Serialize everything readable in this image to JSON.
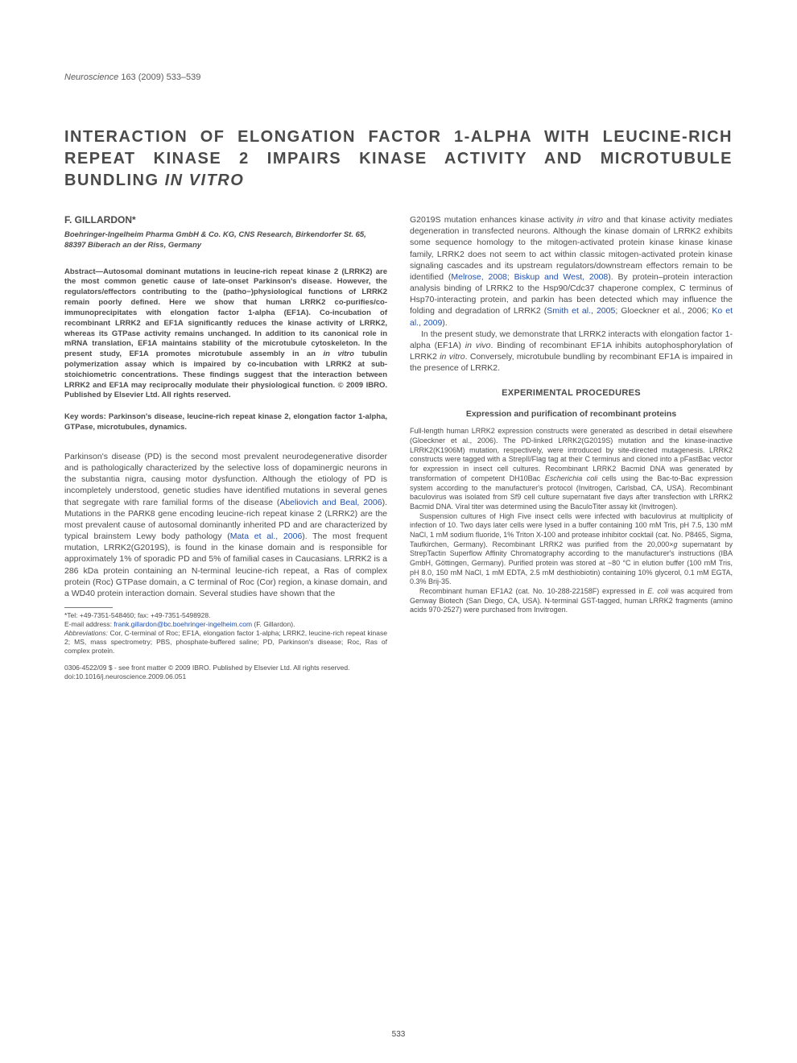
{
  "journal": {
    "name": "Neuroscience",
    "rest": " 163 (2009) 533–539"
  },
  "title": {
    "main": "INTERACTION OF ELONGATION FACTOR 1-ALPHA WITH LEUCINE-RICH REPEAT KINASE 2 IMPAIRS KINASE ACTIVITY AND MICROTUBULE BUNDLING ",
    "italic": "IN VITRO"
  },
  "author": "F. GILLARDON*",
  "affiliation": "Boehringer-Ingelheim Pharma GmbH & Co. KG, CNS Research, Birkendorfer St. 65, 88397 Biberach an der Riss, Germany",
  "abstract": {
    "lead": "Abstract—",
    "body1": "Autosomal dominant mutations in leucine-rich repeat kinase 2 (LRRK2) are the most common genetic cause of late-onset Parkinson's disease. However, the regulators/effectors contributing to the (patho−)physiological functions of LRRK2 remain poorly defined. Here we show that human LRRK2 co-purifies/co-immunoprecipitates with elongation factor 1-alpha (EF1A). Co-incubation of recombinant LRRK2 and EF1A significantly reduces the kinase activity of LRRK2, whereas its GTPase activity remains unchanged. In addition to its canonical role in mRNA translation, EF1A maintains stability of the microtubule cytoskeleton. In the present study, EF1A promotes microtubule assembly in an ",
    "ital1": "in vitro",
    "body2": " tubulin polymerization assay which is impaired by co-incubation with LRRK2 at sub-stoichiometric concentrations. These findings suggest that the interaction between LRRK2 and EF1A may reciprocally modulate their physiological function. © 2009 IBRO. Published by Elsevier Ltd. All rights reserved."
  },
  "keywords": "Key words: Parkinson's disease, leucine-rich repeat kinase 2, elongation factor 1-alpha, GTPase, microtubules, dynamics.",
  "intro": {
    "p1a": "Parkinson's disease (PD) is the second most prevalent neurodegenerative disorder and is pathologically characterized by the selective loss of dopaminergic neurons in the substantia nigra, causing motor dysfunction. Although the etiology of PD is incompletely understood, genetic studies have identified mutations in several genes that segregate with rare familial forms of the disease (",
    "link1": "Abeliovich and Beal, 2006",
    "p1b": "). Mutations in the PARK8 gene encoding leucine-rich repeat kinase 2 (LRRK2) are the most prevalent cause of autosomal dominantly inherited PD and are characterized by typical brainstem Lewy body pathology (",
    "link2": "Mata et al., 2006",
    "p1c": "). The most frequent mutation, LRRK2(G2019S), is found in the kinase domain and is responsible for approximately 1% of sporadic PD and 5% of familial cases in Caucasians. LRRK2 is a 286 kDa protein containing an N-terminal leucine-rich repeat, a Ras of complex protein (Roc) GTPase domain, a C terminal of Roc (Cor) region, a kinase domain, and a WD40 protein interaction domain. Several studies have shown that the"
  },
  "col2": {
    "p1a": "G2019S mutation enhances kinase activity ",
    "ital1": "in vitro",
    "p1b": " and that kinase activity mediates degeneration in transfected neurons. Although the kinase domain of LRRK2 exhibits some sequence homology to the mitogen-activated protein kinase kinase kinase family, LRRK2 does not seem to act within classic mitogen-activated protein kinase signaling cascades and its upstream regulators/downstream effectors remain to be identified (",
    "link1": "Melrose, 2008; Biskup and West, 2008",
    "p1c": "). By protein–protein interaction analysis binding of LRRK2 to the Hsp90/Cdc37 chaperone complex, C terminus of Hsp70-interacting protein, and parkin has been detected which may influence the folding and degradation of LRRK2 (",
    "link2": "Smith et al., 2005",
    "p1d": "; Gloeckner et al., 2006; ",
    "link3": "Ko et al., 2009",
    "p1e": ").",
    "p2a": "In the present study, we demonstrate that LRRK2 interacts with elongation factor 1-alpha (EF1A) ",
    "ital2": "in vivo",
    "p2b": ". Binding of recombinant EF1A inhibits autophosphorylation of LRRK2 ",
    "ital3": "in vitro",
    "p2c": ". Conversely, microtubule bundling by recombinant EF1A is impaired in the presence of LRRK2."
  },
  "section_heading": "EXPERIMENTAL PROCEDURES",
  "subsection_heading": "Expression and purification of recombinant proteins",
  "methods": {
    "p1a": "Full-length human LRRK2 expression constructs were generated as described in detail elsewhere (Gloeckner et al., 2006). The PD-linked LRRK2(G2019S) mutation and the kinase-inactive LRRK2(K1906M) mutation, respectively, were introduced by site-directed mutagenesis. LRRK2 constructs were tagged with a StrepII/Flag tag at their C terminus and cloned into a pFastBac vector for expression in insect cell cultures. Recombinant LRRK2 Bacmid DNA was generated by transformation of competent DH10Bac ",
    "ital1": "Escherichia coli",
    "p1b": " cells using the Bac-to-Bac expression system according to the manufacturer's protocol (Invitrogen, Carlsbad, CA, USA). Recombinant baculovirus was isolated from Sf9 cell culture supernatant five days after transfection with LRRK2 Bacmid DNA. Viral titer was determined using the BaculoTiter assay kit (Invitrogen).",
    "p2a": "Suspension cultures of High Five insect cells were infected with baculovirus at multiplicity of infection of 10. Two days later cells were lysed in a buffer containing 100 mM Tris, pH 7.5, 130 mM NaCl, 1 mM sodium fluoride, 1% Triton X-100 and protease inhibitor cocktail (cat. No. P8465, Sigma, Taufkirchen, Germany). Recombinant LRRK2 was purified from the 20,000×",
    "ital2": "g",
    "p2b": " supernatant by StrepTactin Superflow Affinity Chromatography according to the manufacturer's instructions (IBA GmbH, Göttingen, Germany). Purified protein was stored at −80 °C in elution buffer (100 mM Tris, pH 8.0, 150 mM NaCl, 1 mM EDTA, 2.5 mM desthiobiotin) containing 10% glycerol, 0.1 mM EGTA, 0.3% Brij-35.",
    "p3a": "Recombinant human EF1A2 (cat. No. 10-288-22158F) expressed in ",
    "ital3": "E. coli",
    "p3b": " was acquired from Genway Biotech (San Diego, CA, USA). N-terminal GST-tagged, human LRRK2 fragments (amino acids 970-2527) were purchased from Invitrogen."
  },
  "footnotes": {
    "tel": "*Tel: +49-7351-548460; fax: +49-7351-5498928.",
    "email_label": "E-mail address: ",
    "email": "frank.gillardon@bc.boehringer-ingelheim.com",
    "email_suffix": " (F. Gillardon).",
    "abbrev_label": "Abbreviations:",
    "abbrev": " Cor, C-terminal of Roc; EF1A, elongation factor 1-alpha; LRRK2, leucine-rich repeat kinase 2; MS, mass spectrometry; PBS, phosphate-buffered saline; PD, Parkinson's disease; Roc, Ras of complex protein."
  },
  "copyright": "0306-4522/09 $ - see front matter © 2009 IBRO. Published by Elsevier Ltd. All rights reserved.",
  "doi": "doi:10.1016/j.neuroscience.2009.06.051",
  "page_number": "533",
  "colors": {
    "text": "#4a4a4a",
    "link": "#2050b0",
    "background": "#ffffff"
  },
  "typography": {
    "title_fontsize": 20,
    "body_fontsize": 10.5,
    "abstract_fontsize": 9.5,
    "methods_fontsize": 9,
    "footnote_fontsize": 8.5
  }
}
